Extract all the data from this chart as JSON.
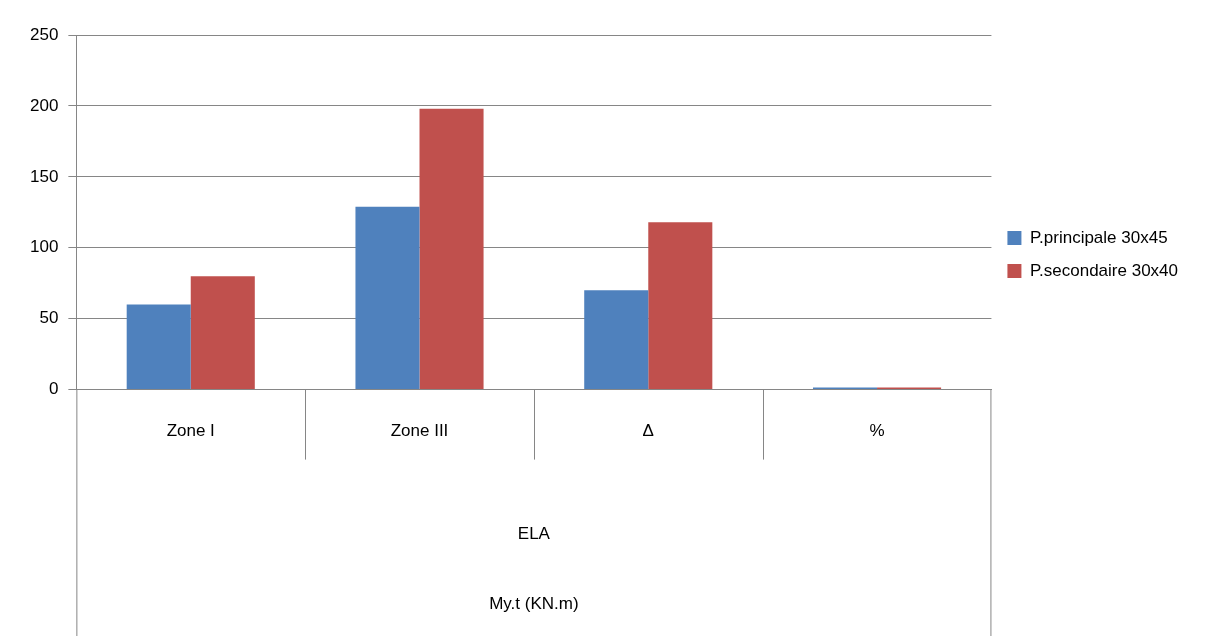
{
  "chart_data": {
    "type": "bar",
    "categories": [
      "Zone I",
      "Zone III",
      "Δ",
      "%"
    ],
    "series": [
      {
        "name": "P.principale 30x45",
        "color": "#4f81bd",
        "values": [
          60,
          129,
          70,
          1.5
        ]
      },
      {
        "name": "P.secondaire 30x40",
        "color": "#c0504d",
        "values": [
          80,
          198,
          118,
          1.5
        ]
      }
    ],
    "xlabel": "ELA",
    "annotations": [
      "My.t (KN.m)"
    ],
    "ylim": [
      0,
      250
    ],
    "yticks": [
      0,
      50,
      100,
      150,
      200,
      250
    ],
    "grid": "y",
    "legend": "right"
  }
}
